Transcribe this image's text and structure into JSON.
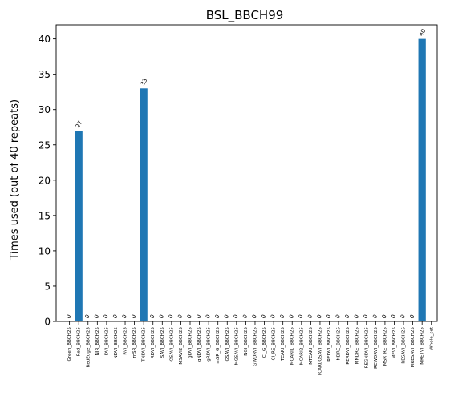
{
  "chart_data": {
    "type": "bar",
    "title": "BSL_BBCH99",
    "xlabel": "",
    "ylabel": "Times used (out of 40 repeats)",
    "ylim": [
      0,
      42
    ],
    "yticks": [
      0,
      5,
      10,
      15,
      20,
      25,
      30,
      35,
      40
    ],
    "grid": false,
    "legend": "none",
    "bar_color": "#1f77b4",
    "categories": [
      "Green_BBCH25",
      "Red_BBCH25",
      "RedEdge_BBCH25",
      "NIR_BBCH25",
      "DVI_BBCH25",
      "NDVI_BBCH25",
      "RVI_BBCH25",
      "mSR_BBCH25",
      "TNDVI_BBCH25",
      "RDVI_BBCH25",
      "SAVI_BBCH25",
      "OSAVI_BBCH25",
      "MSAVI2_BBCH25",
      "gDVI_BBCH25",
      "gNDVI_BBCH25",
      "gRDVI_BBCH25",
      "mSR_G_BBCH25",
      "GSAVI_BBCH25",
      "MGSAVI_BBCH25",
      "NGI_BBCH25",
      "GWDRVI_BBCH25",
      "CI_G_BBCH25",
      "CI_RE_BBCH25",
      "TCARI_BBCH25",
      "MCARI1_BBCH25",
      "MCARI2_BBCH25",
      "MTCARI_BBCH25",
      "TCARI/OSAVI_BBCH25",
      "REDVI_BBCH25",
      "NDRE_BBCH25",
      "RERDVI_BBCH25",
      "MNDRE_BBCH25",
      "REGNDVI_BBCH25",
      "REWDRVI_BBCH25",
      "MSR_RE_BBCH25",
      "MEVI_BBCH25",
      "RESAVI_BBCH25",
      "MRESAVI_BBCH25",
      "MRETVI_BBCH25",
      "Whole_set"
    ],
    "values": [
      0,
      27,
      0,
      0,
      0,
      0,
      0,
      0,
      33,
      0,
      0,
      0,
      0,
      0,
      0,
      0,
      0,
      0,
      0,
      0,
      0,
      0,
      0,
      0,
      0,
      0,
      0,
      0,
      0,
      0,
      0,
      0,
      0,
      0,
      0,
      0,
      0,
      0,
      40,
      null
    ],
    "data_labels": [
      "0",
      "27",
      "0",
      "0",
      "0",
      "0",
      "0",
      "0",
      "33",
      "0",
      "0",
      "0",
      "0",
      "0",
      "0",
      "0",
      "0",
      "0",
      "0",
      "0",
      "0",
      "0",
      "0",
      "0",
      "0",
      "0",
      "0",
      "0",
      "0",
      "0",
      "0",
      "0",
      "0",
      "0",
      "0",
      "0",
      "0",
      "0",
      "40",
      ""
    ]
  }
}
